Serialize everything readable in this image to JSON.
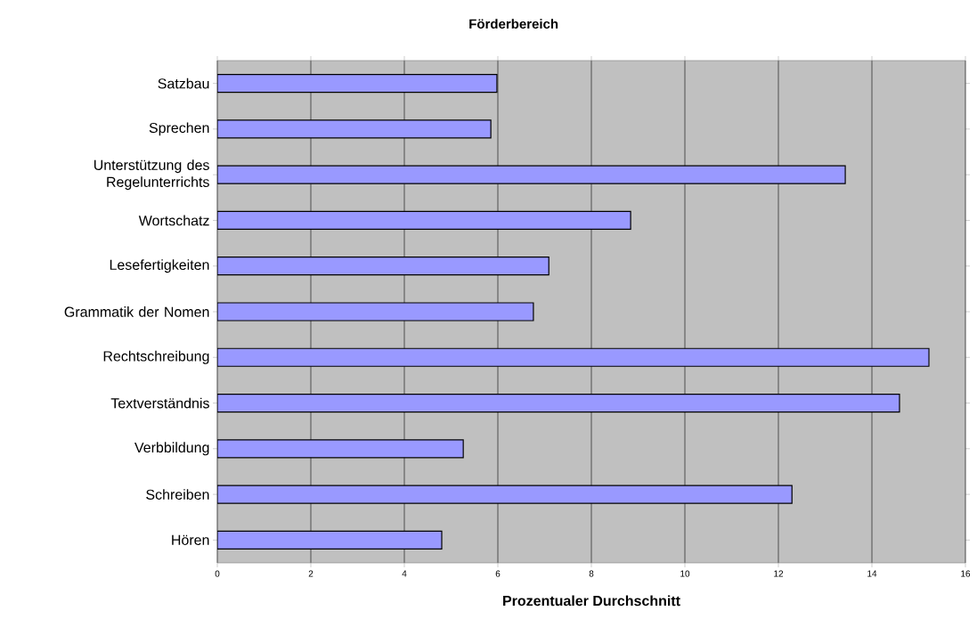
{
  "chart_data": {
    "type": "bar",
    "orientation": "horizontal",
    "title": "Förderbereich",
    "xlabel": "Prozentualer Durchschnitt",
    "categories": [
      "Satzbau",
      "Sprechen",
      "Unterstützung des Regelunterrichts",
      "Wortschatz",
      "Lesefertigkeiten",
      "Grammatik der Nomen",
      "Rechtschreibung",
      "Textverständnis",
      "Verbbildung",
      "Schreiben",
      "Hören"
    ],
    "values": [
      5.98,
      5.85,
      13.43,
      8.84,
      7.09,
      6.76,
      15.22,
      14.59,
      5.26,
      12.29,
      4.8
    ],
    "color": "#9999ff",
    "xlim": [
      0,
      16
    ],
    "xticks": [
      0,
      2,
      4,
      6,
      8,
      10,
      12,
      14,
      16
    ],
    "grid": "x"
  }
}
